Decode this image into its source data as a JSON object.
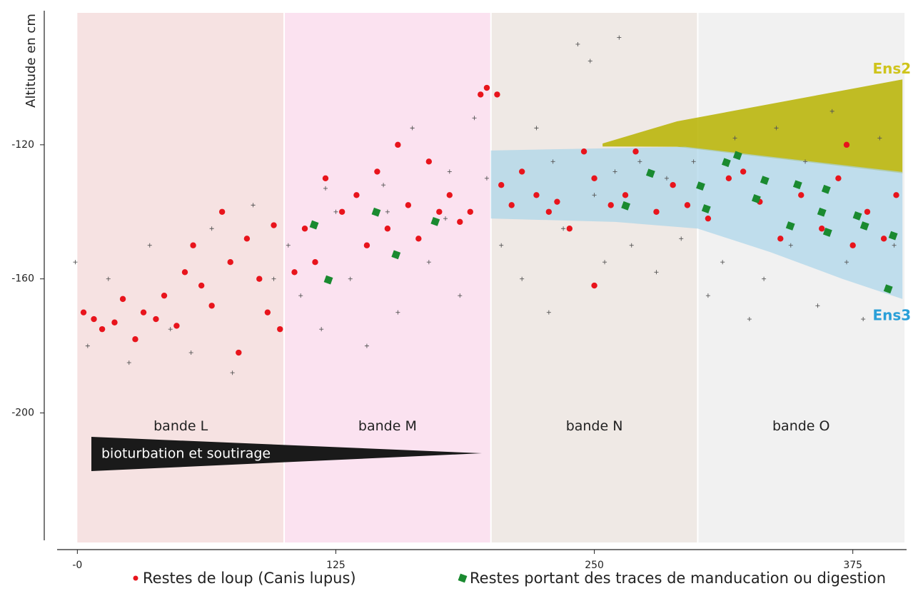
{
  "chart_data": {
    "type": "scatter",
    "y_label": "Altitude en cm",
    "xlim": [
      -16,
      401
    ],
    "ylim": [
      -238,
      -80
    ],
    "xticks": [
      {
        "value": 0,
        "label": "-0"
      },
      125,
      250,
      375
    ],
    "yticks": [
      -120,
      -160,
      -200
    ],
    "bands": [
      {
        "label": "bande L",
        "start": 0,
        "end": 100,
        "color": "#f6e2e2"
      },
      {
        "label": "bande M",
        "start": 100,
        "end": 200,
        "color": "#fbe2f0"
      },
      {
        "label": "bande N",
        "start": 200,
        "end": 300,
        "color": "#efe9e5"
      },
      {
        "label": "bande O",
        "start": 300,
        "end": 400,
        "color": "#f1f1f1"
      }
    ],
    "regions": [
      {
        "label": "Ens2",
        "color": "#b7b300",
        "label_color": "#cfc41c",
        "x": [
          254,
          290,
          399,
          399,
          290,
          254
        ],
        "y": [
          -119.6,
          -113,
          -100.5,
          -128.5,
          -120.6,
          -120.5
        ]
      },
      {
        "label": "Ens3",
        "color": "#a9d4ea",
        "label_color": "#2a9fd8",
        "x": [
          200,
          294,
          399,
          399,
          370,
          335,
          300,
          260,
          200
        ],
        "y": [
          -121.7,
          -120.6,
          -128.1,
          -166,
          -160,
          -152,
          -145,
          -143,
          -142
        ]
      }
    ],
    "annotation": "bioturbation et soutirage",
    "series": [
      {
        "color": "#555555",
        "marker": "cross",
        "x": [
          -1,
          5,
          15,
          25,
          35,
          45,
          55,
          65,
          75,
          85,
          95,
          102,
          108,
          118,
          125,
          132,
          140,
          148,
          155,
          162,
          170,
          178,
          185,
          192,
          198,
          205,
          215,
          222,
          228,
          235,
          242,
          248,
          255,
          262,
          268,
          272,
          280,
          285,
          292,
          298,
          305,
          312,
          318,
          325,
          332,
          338,
          345,
          352,
          358,
          365,
          372,
          380,
          388,
          395,
          250,
          260,
          150,
          120,
          180,
          230
        ],
        "values": [
          -155,
          -180,
          -160,
          -185,
          -150,
          -175,
          -182,
          -145,
          -188,
          -138,
          -160,
          -150,
          -165,
          -175,
          -140,
          -160,
          -180,
          -132,
          -170,
          -115,
          -155,
          -142,
          -165,
          -112,
          -130,
          -150,
          -160,
          -115,
          -170,
          -145,
          -90,
          -95,
          -155,
          -88,
          -150,
          -125,
          -158,
          -130,
          -148,
          -125,
          -165,
          -155,
          -118,
          -172,
          -160,
          -115,
          -150,
          -125,
          -168,
          -110,
          -155,
          -172,
          -118,
          -150,
          -135,
          -128,
          -140,
          -133,
          -128,
          -125
        ]
      },
      {
        "name": "Restes de loup (Canis lupus)",
        "color": "#e8141c",
        "marker": "circle",
        "x": [
          3,
          8,
          12,
          18,
          22,
          28,
          32,
          38,
          42,
          48,
          52,
          56,
          60,
          65,
          70,
          74,
          78,
          82,
          88,
          92,
          95,
          98,
          105,
          110,
          115,
          120,
          128,
          135,
          140,
          145,
          150,
          155,
          160,
          165,
          170,
          175,
          180,
          185,
          190,
          195,
          198,
          203,
          205,
          210,
          215,
          222,
          228,
          232,
          238,
          245,
          250,
          258,
          265,
          270,
          280,
          288,
          295,
          250,
          305,
          315,
          322,
          330,
          340,
          350,
          360,
          368,
          375,
          382,
          390,
          396,
          372
        ],
        "values": [
          -170,
          -172,
          -175,
          -173,
          -166,
          -178,
          -170,
          -172,
          -165,
          -174,
          -158,
          -150,
          -162,
          -168,
          -140,
          -155,
          -182,
          -148,
          -160,
          -170,
          -144,
          -175,
          -158,
          -145,
          -155,
          -130,
          -140,
          -135,
          -150,
          -128,
          -145,
          -120,
          -138,
          -148,
          -125,
          -140,
          -135,
          -143,
          -140,
          -105,
          -103,
          -105,
          -132,
          -138,
          -128,
          -135,
          -140,
          -137,
          -145,
          -122,
          -130,
          -138,
          -135,
          -122,
          -140,
          -132,
          -138,
          -162,
          -142,
          -130,
          -128,
          -137,
          -148,
          -135,
          -145,
          -130,
          -150,
          -140,
          -148,
          -135,
          -120
        ]
      },
      {
        "name": "Restes portant des traces de manducation ou digestion",
        "color": "#1a8a30",
        "marker": "square",
        "x": [
          114.5,
          144.5,
          154.1,
          173.1,
          121.4,
          265.2,
          277.2,
          301.4,
          304.1,
          313.8,
          319.3,
          328.3,
          332.4,
          344.8,
          348.3,
          360,
          362.1,
          362.8,
          377.2,
          380.7,
          394.5,
          392.1
        ],
        "values": [
          -143.9,
          -140.1,
          -152.8,
          -142.9,
          -160.3,
          -138.2,
          -128.5,
          -132.3,
          -139.1,
          -125.3,
          -123.2,
          -136.1,
          -130.6,
          -144.2,
          -131.9,
          -140.1,
          -133.3,
          -146.1,
          -141.2,
          -144.2,
          -147.1,
          -163
        ]
      }
    ]
  }
}
